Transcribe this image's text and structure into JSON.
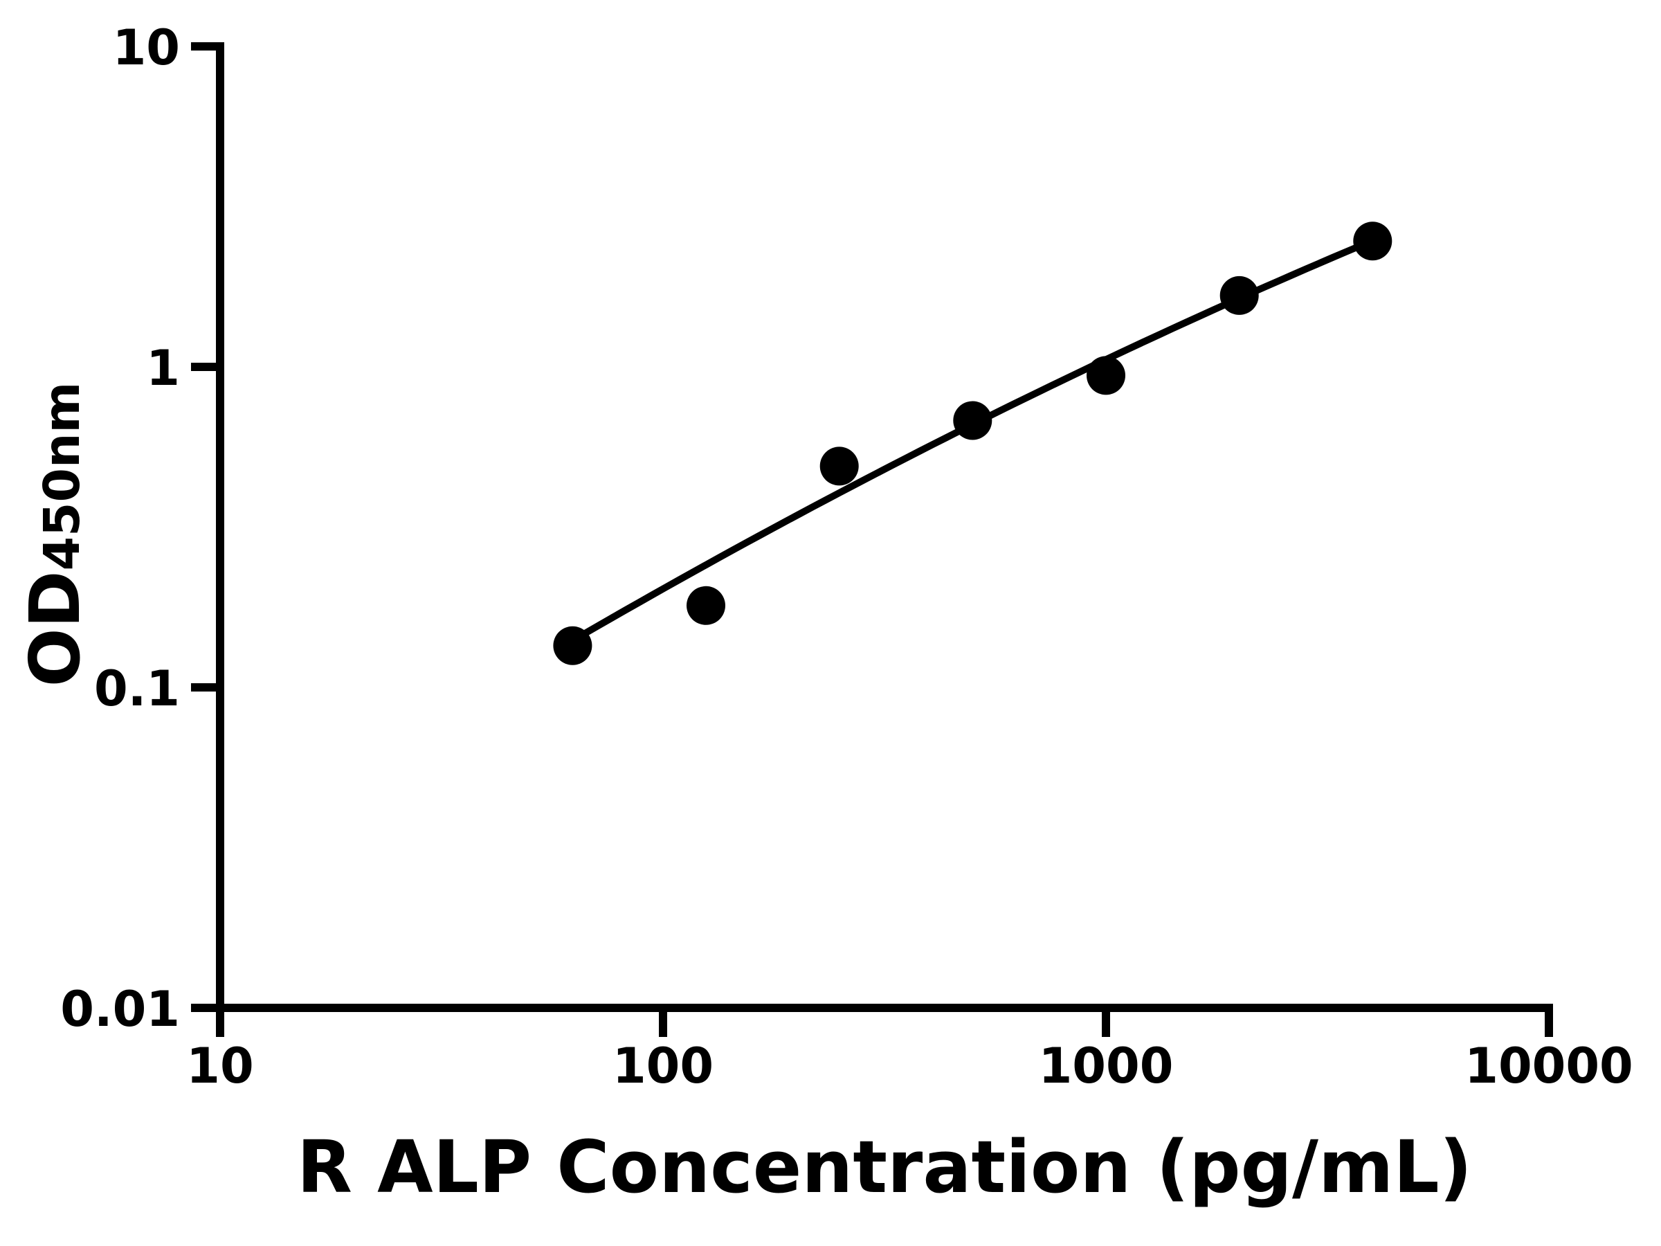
{
  "figure": {
    "background_color": "#ffffff",
    "foreground_color": "#000000"
  },
  "chart_data": {
    "type": "scatter",
    "title": "",
    "xlabel": "R ALP Concentration (pg/mL)",
    "ylabel": "OD",
    "ylabel_subscript": "450nm",
    "x_scale": "log10",
    "y_scale": "log10",
    "xlim": [
      10,
      10000
    ],
    "ylim": [
      0.01,
      10
    ],
    "grid": false,
    "legend": null,
    "marker_color": "#000000",
    "line_color": "#000000",
    "x_ticks": [
      {
        "value": 10,
        "label": "10"
      },
      {
        "value": 100,
        "label": "100"
      },
      {
        "value": 1000,
        "label": "1000"
      },
      {
        "value": 10000,
        "label": "10000"
      }
    ],
    "y_ticks": [
      {
        "value": 0.01,
        "label": "0.01"
      },
      {
        "value": 0.1,
        "label": "0.1"
      },
      {
        "value": 1,
        "label": "1"
      },
      {
        "value": 10,
        "label": "10"
      }
    ],
    "points": [
      {
        "x": 62.5,
        "y": 0.135
      },
      {
        "x": 125,
        "y": 0.18
      },
      {
        "x": 250,
        "y": 0.49
      },
      {
        "x": 500,
        "y": 0.68
      },
      {
        "x": 1000,
        "y": 0.94
      },
      {
        "x": 2000,
        "y": 1.67
      },
      {
        "x": 4000,
        "y": 2.47
      }
    ],
    "fit_curve": {
      "type": "quadratic_in_loglog_space",
      "description": "log10(y) = a + b*t + c*t^2 where t = log10(x)",
      "coeffs": {
        "a": -2.495,
        "b": 1.025,
        "c": -0.0619
      },
      "x_range": [
        62.5,
        4000
      ]
    }
  }
}
